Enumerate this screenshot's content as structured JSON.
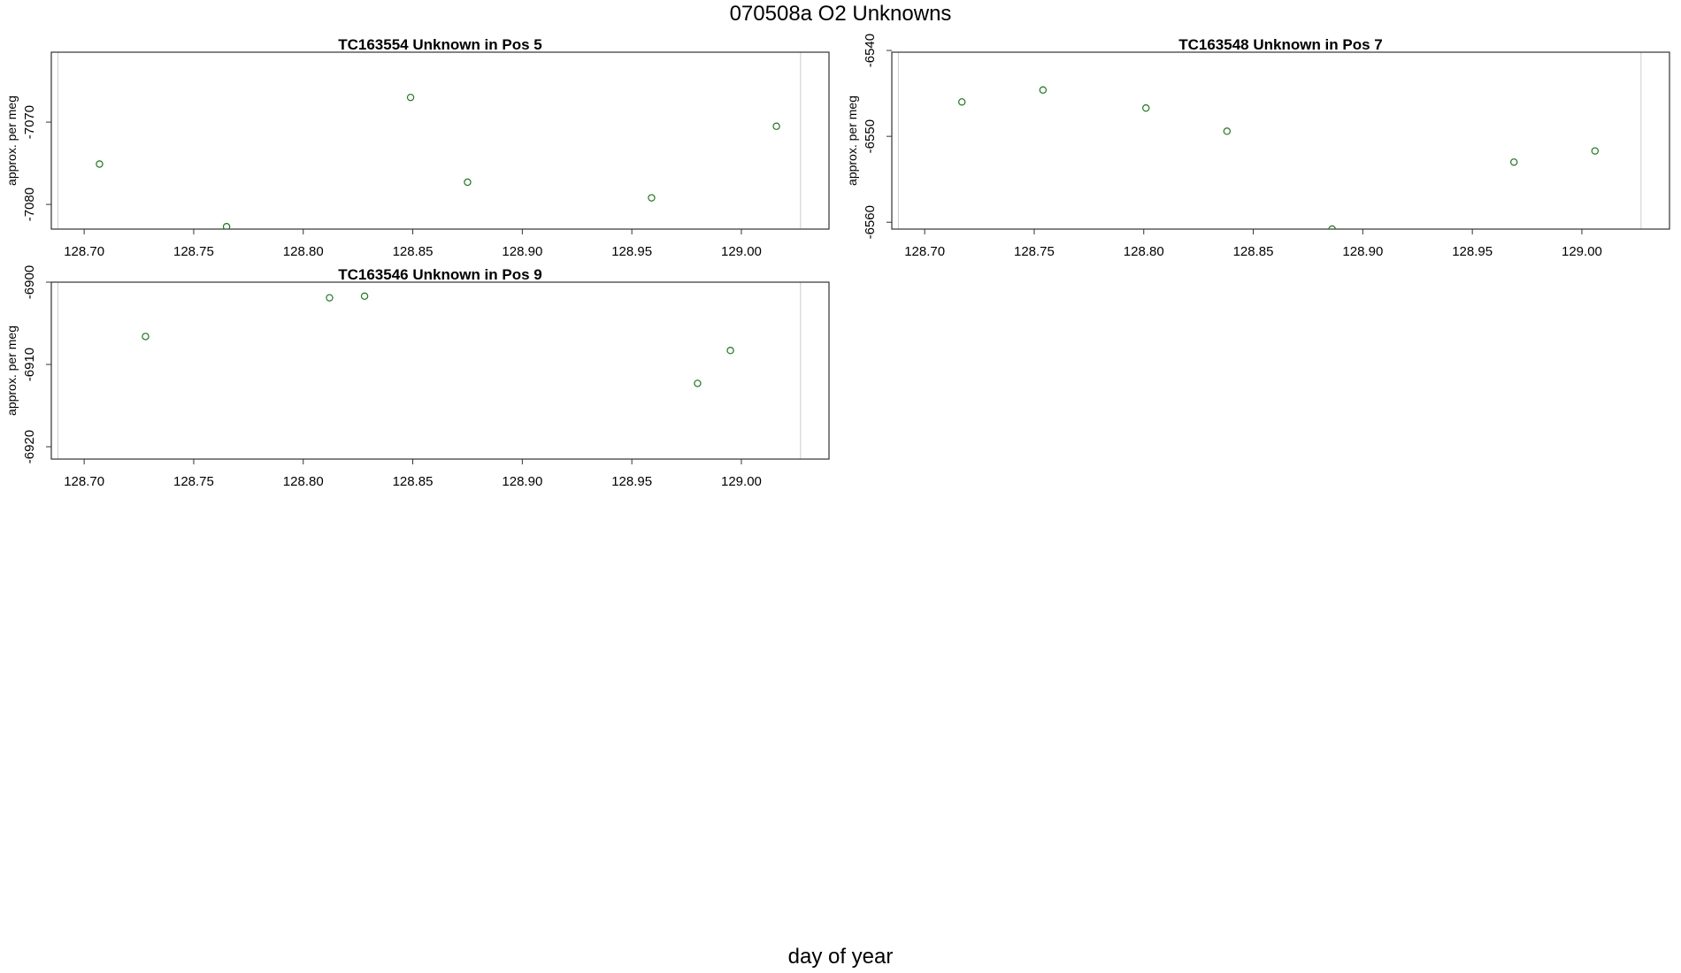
{
  "page": {
    "title": "070508a  O2 Unknowns",
    "xlabel": "day of year"
  },
  "colors": {
    "points": "#1a7a1a",
    "frame": "#333333",
    "guide": "#cccccc"
  },
  "chart_data": [
    {
      "type": "scatter",
      "title": "TC163554    Unknown in Pos 5",
      "xlabel": "",
      "ylabel": "approx. per meg",
      "xlim": [
        128.685,
        129.04
      ],
      "ylim": [
        -7083,
        -7061.5
      ],
      "xticks": [
        "128.70",
        "128.75",
        "128.80",
        "128.85",
        "128.90",
        "128.95",
        "129.00"
      ],
      "yticks": [
        "-7070",
        "-7080"
      ],
      "guides_x": [
        128.688,
        129.027
      ],
      "series": [
        {
          "x": [
            128.707,
            128.765,
            128.849,
            128.875,
            128.959,
            129.016
          ],
          "y": [
            -7075.1,
            -7082.7,
            -7067.0,
            -7077.3,
            -7079.2,
            -7070.5
          ]
        }
      ]
    },
    {
      "type": "scatter",
      "title": "TC163548    Unknown in Pos 7",
      "xlabel": "",
      "ylabel": "approx. per meg",
      "xlim": [
        128.685,
        129.04
      ],
      "ylim": [
        -6560.8,
        -6540.2
      ],
      "xticks": [
        "128.70",
        "128.75",
        "128.80",
        "128.85",
        "128.90",
        "128.95",
        "129.00"
      ],
      "yticks": [
        "-6540",
        "-6550",
        "-6560"
      ],
      "guides_x": [
        128.688,
        129.027
      ],
      "series": [
        {
          "x": [
            128.717,
            128.754,
            128.801,
            128.838,
            128.886,
            128.969,
            129.006
          ],
          "y": [
            -6546.0,
            -6544.6,
            -6546.7,
            -6549.4,
            -6560.8,
            -6553.0,
            -6551.7
          ]
        }
      ]
    },
    {
      "type": "scatter",
      "title": "TC163546    Unknown in Pos 9",
      "xlabel": "",
      "ylabel": "approx. per meg",
      "xlim": [
        128.685,
        129.04
      ],
      "ylim": [
        -6921.5,
        -6900.0
      ],
      "xticks": [
        "128.70",
        "128.75",
        "128.80",
        "128.85",
        "128.90",
        "128.95",
        "129.00"
      ],
      "yticks": [
        "-6900",
        "-6910",
        "-6920"
      ],
      "guides_x": [
        128.688,
        129.027
      ],
      "series": [
        {
          "x": [
            128.728,
            128.812,
            128.828,
            128.98,
            128.995
          ],
          "y": [
            -6906.6,
            -6901.9,
            -6901.7,
            -6912.3,
            -6908.3
          ]
        }
      ]
    }
  ]
}
